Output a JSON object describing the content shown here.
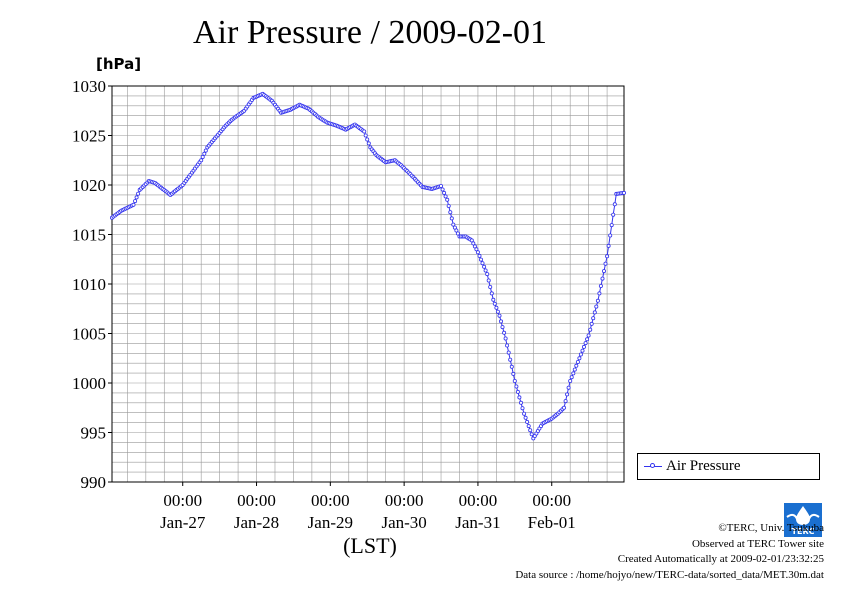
{
  "title": "Air Pressure / 2009-02-01",
  "unit_label": "[hPa]",
  "time_axis_label": "(LST)",
  "legend_label": "Air Pressure",
  "credits": {
    "copyright": "©TERC, Univ. Tsukuba",
    "observed": "Observed at TERC Tower site",
    "created": "Created Automatically at 2009-02-01/23:32:25",
    "source": "Data source : /home/hojyo/new/TERC-data/sorted_data/MET.30m.dat"
  },
  "logo_text": "TERC",
  "colors": {
    "series": "#3333ee",
    "grid": "#999999",
    "logo": "#1a6fd0"
  },
  "chart_data": {
    "type": "line",
    "title": "Air Pressure / 2009-02-01",
    "ylabel": "[hPa]",
    "xlabel": "(LST)",
    "ylim": [
      990,
      1030
    ],
    "y_ticks": [
      990,
      995,
      1000,
      1005,
      1010,
      1015,
      1020,
      1025,
      1030
    ],
    "xlim": [
      "2009-01-26 01:00",
      "2009-02-01 23:30"
    ],
    "x_ticks": [
      {
        "x": "2009-01-27 00:00",
        "time": "00:00",
        "date": "Jan-27"
      },
      {
        "x": "2009-01-28 00:00",
        "time": "00:00",
        "date": "Jan-28"
      },
      {
        "x": "2009-01-29 00:00",
        "time": "00:00",
        "date": "Jan-29"
      },
      {
        "x": "2009-01-30 00:00",
        "time": "00:00",
        "date": "Jan-30"
      },
      {
        "x": "2009-01-31 00:00",
        "time": "00:00",
        "date": "Jan-31"
      },
      {
        "x": "2009-02-01 00:00",
        "time": "00:00",
        "date": "Feb-01"
      }
    ],
    "grid": true,
    "legend_position": "right",
    "series": [
      {
        "name": "Air Pressure",
        "interval": "30min",
        "x_anchors": [
          "2009-01-26 01:00",
          "2009-01-26 04:00",
          "2009-01-26 08:00",
          "2009-01-26 10:00",
          "2009-01-26 13:00",
          "2009-01-26 15:00",
          "2009-01-26 20:00",
          "2009-01-27 00:00",
          "2009-01-27 06:00",
          "2009-01-27 08:00",
          "2009-01-27 11:00",
          "2009-01-27 14:00",
          "2009-01-27 16:00",
          "2009-01-27 20:00",
          "2009-01-27 23:00",
          "2009-01-28 02:00",
          "2009-01-28 05:00",
          "2009-01-28 08:00",
          "2009-01-28 11:00",
          "2009-01-28 14:00",
          "2009-01-28 17:00",
          "2009-01-28 20:00",
          "2009-01-28 23:00",
          "2009-01-29 02:00",
          "2009-01-29 05:00",
          "2009-01-29 08:00",
          "2009-01-29 11:00",
          "2009-01-29 13:00",
          "2009-01-29 15:00",
          "2009-01-29 18:00",
          "2009-01-29 21:00",
          "2009-01-29 23:00",
          "2009-01-30 02:00",
          "2009-01-30 06:00",
          "2009-01-30 09:00",
          "2009-01-30 12:00",
          "2009-01-30 14:00",
          "2009-01-30 16:00",
          "2009-01-30 18:00",
          "2009-01-30 20:00",
          "2009-01-30 22:00",
          "2009-01-31 00:00",
          "2009-01-31 03:00",
          "2009-01-31 05:00",
          "2009-01-31 07:00",
          "2009-01-31 09:00",
          "2009-01-31 12:00",
          "2009-01-31 15:00",
          "2009-01-31 18:00",
          "2009-01-31 21:00",
          "2009-02-01 00:00",
          "2009-02-01 02:00",
          "2009-02-01 04:00",
          "2009-02-01 06:00",
          "2009-02-01 09:00",
          "2009-02-01 12:00",
          "2009-02-01 15:00",
          "2009-02-01 18:00",
          "2009-02-01 21:00",
          "2009-02-01 23:30"
        ],
        "y_anchors": [
          1016.7,
          1017.4,
          1018.0,
          1019.5,
          1020.4,
          1020.2,
          1019.0,
          1020.0,
          1022.5,
          1023.8,
          1024.9,
          1026.0,
          1026.6,
          1027.5,
          1028.8,
          1029.2,
          1028.5,
          1027.3,
          1027.6,
          1028.1,
          1027.7,
          1026.9,
          1026.3,
          1026.0,
          1025.6,
          1026.1,
          1025.4,
          1023.8,
          1023.0,
          1022.3,
          1022.5,
          1022.0,
          1021.1,
          1019.8,
          1019.6,
          1019.9,
          1018.5,
          1016.0,
          1014.8,
          1014.8,
          1014.4,
          1013.2,
          1011.0,
          1008.4,
          1006.8,
          1004.5,
          1000.2,
          996.9,
          994.4,
          995.9,
          996.4,
          996.9,
          997.5,
          1000.2,
          1002.5,
          1004.8,
          1008.3,
          1012.8,
          1019.1,
          1019.2
        ]
      }
    ]
  }
}
